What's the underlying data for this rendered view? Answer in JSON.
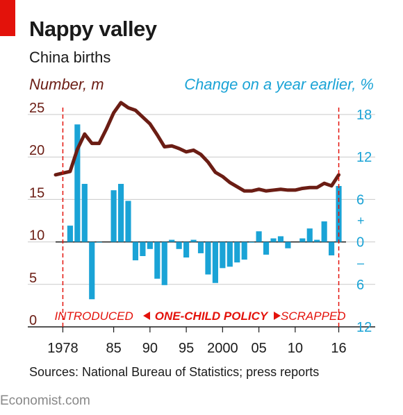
{
  "header": {
    "title": "Nappy valley",
    "subtitle": "China births"
  },
  "chart_data": {
    "type": "bar+line",
    "left_axis": {
      "label": "Number, m",
      "range": [
        0,
        25
      ],
      "ticks": [
        0,
        5,
        10,
        15,
        20,
        25
      ],
      "tick_labels": [
        "0",
        "5",
        "10",
        "15",
        "20",
        "25"
      ]
    },
    "right_axis": {
      "label": "Change on a year earlier, %",
      "range": [
        -12,
        18
      ],
      "ticks": [
        18,
        12,
        6,
        0,
        -6,
        -12
      ],
      "tick_labels": [
        "18",
        "12",
        "6",
        "0",
        "6",
        "12"
      ],
      "sign_labels": {
        "plus": "+",
        "minus": "–"
      }
    },
    "x_axis": {
      "range": [
        1977,
        2017
      ],
      "ticks": [
        1978,
        1985,
        1990,
        1995,
        2000,
        2005,
        2010,
        2016
      ],
      "tick_labels": [
        "1978",
        "85",
        "90",
        "95",
        "2000",
        "05",
        "10",
        "16"
      ]
    },
    "series": [
      {
        "name": "Number, m",
        "kind": "line",
        "axis": "left",
        "color": "#6b1d14",
        "x": [
          1977,
          1978,
          1979,
          1980,
          1981,
          1982,
          1983,
          1984,
          1985,
          1986,
          1987,
          1988,
          1989,
          1990,
          1991,
          1992,
          1993,
          1994,
          1995,
          1996,
          1997,
          1998,
          1999,
          2000,
          2001,
          2002,
          2003,
          2004,
          2005,
          2006,
          2007,
          2008,
          2009,
          2010,
          2011,
          2012,
          2013,
          2014,
          2015,
          2016
        ],
        "y": [
          17.9,
          18.1,
          18.3,
          20.9,
          22.7,
          21.6,
          21.6,
          23.3,
          25.2,
          26.4,
          25.8,
          25.5,
          24.7,
          23.9,
          22.6,
          21.2,
          21.3,
          21.0,
          20.6,
          20.8,
          20.3,
          19.4,
          18.2,
          17.7,
          17.0,
          16.5,
          16.0,
          16.0,
          16.2,
          16.0,
          16.1,
          16.2,
          16.1,
          16.1,
          16.3,
          16.4,
          16.4,
          16.9,
          16.6,
          17.9
        ]
      },
      {
        "name": "Change on a year earlier, %",
        "kind": "bar",
        "axis": "right",
        "color": "#1aa3d6",
        "x": [
          1979,
          1980,
          1981,
          1982,
          1983,
          1985,
          1986,
          1987,
          1988,
          1989,
          1990,
          1991,
          1992,
          1993,
          1994,
          1995,
          1996,
          1997,
          1998,
          1999,
          2000,
          2001,
          2002,
          2003,
          2004,
          2005,
          2006,
          2007,
          2008,
          2009,
          2011,
          2012,
          2013,
          2014,
          2015,
          2016
        ],
        "y": [
          2.3,
          16.6,
          8.2,
          -8.1,
          -0.1,
          7.3,
          8.2,
          5.8,
          -2.6,
          -2.0,
          -1.0,
          -5.2,
          -6.1,
          0.3,
          -1.0,
          -2.2,
          0.3,
          -1.6,
          -4.6,
          -5.8,
          -3.7,
          -3.5,
          -2.9,
          -2.5,
          -0.1,
          1.5,
          -1.8,
          0.5,
          0.8,
          -0.9,
          0.5,
          1.9,
          0.3,
          2.9,
          -1.9,
          7.9
        ]
      }
    ],
    "annotations": {
      "start_year": 1978,
      "end_year": 2016,
      "introduced": "INTRODUCED",
      "policy": "ONE-CHILD POLICY",
      "scrapped": "SCRAPPED",
      "color": "#e3120b"
    },
    "grid": true
  },
  "footer": {
    "source": "Sources: National Bureau of Statistics; press reports",
    "brand": "Economist.com"
  }
}
